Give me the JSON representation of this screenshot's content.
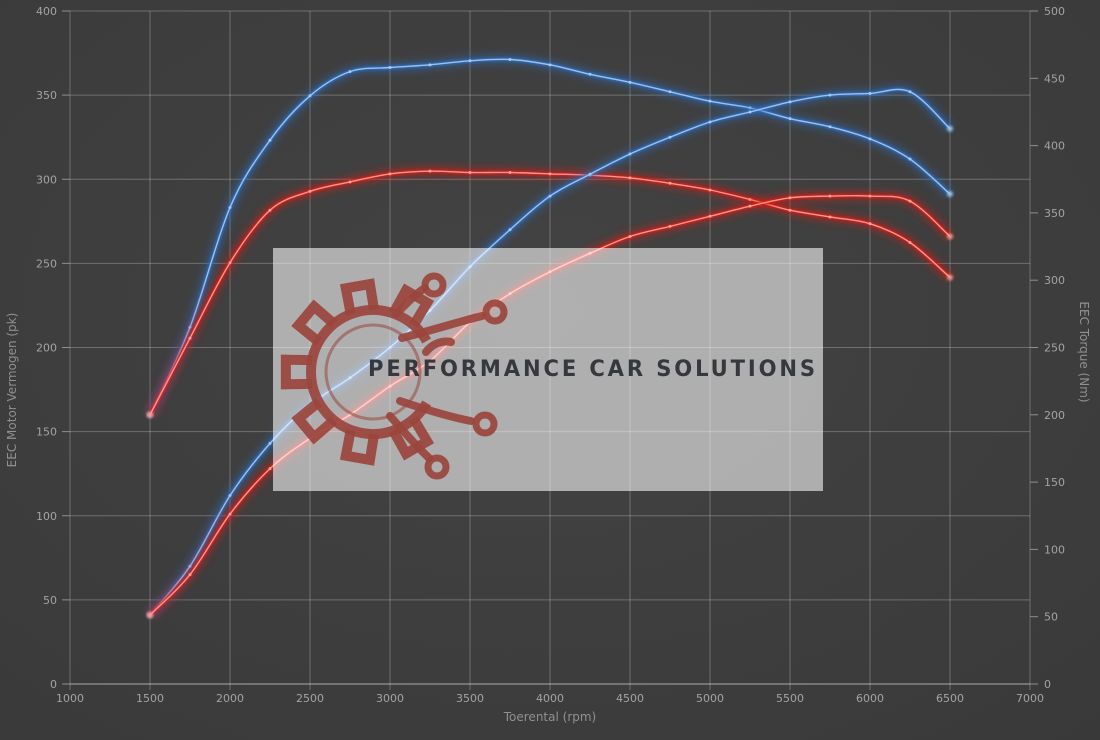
{
  "watermark": {
    "text": "PERFORMANCE CAR SOLUTIONS",
    "text_color": "#35383c",
    "box_color": "#ffffff",
    "box_opacity": 0.58,
    "logo_color": "#9a453d"
  },
  "chart_data": {
    "type": "line",
    "title": "",
    "xlabel": "Toerental (rpm)",
    "ylabel_left": "EEC Motor Vermogen (pk)",
    "ylabel_right": "EEC Torque (Nm)",
    "x_range": [
      1000,
      7000
    ],
    "x_tick_step": 500,
    "y_left_range": [
      0,
      400
    ],
    "y_right_range": [
      0,
      500
    ],
    "y_tick_step": 50,
    "grid": true,
    "legend": "none",
    "background": "#3b3b3b",
    "grid_color": "#757575",
    "rpm": [
      1500,
      1750,
      2000,
      2250,
      2500,
      2750,
      3000,
      3250,
      3500,
      3750,
      4000,
      4250,
      4500,
      4750,
      5000,
      5250,
      5500,
      5750,
      6000,
      6250,
      6500
    ],
    "series": [
      {
        "name": "torque-tuned-blue",
        "axis": "right",
        "color": "#2f6fc4",
        "core_color": "#a6ccf5",
        "values": [
          200,
          265,
          354,
          404,
          437,
          455,
          458,
          460,
          463,
          464,
          460,
          453,
          447,
          440,
          433,
          428,
          420,
          414,
          405,
          390,
          364
        ]
      },
      {
        "name": "torque-stock-red",
        "axis": "right",
        "color": "#e01f15",
        "core_color": "#ffa399",
        "values": [
          200,
          257,
          313,
          352,
          366,
          373,
          379,
          381,
          380,
          380,
          379,
          378,
          376,
          372,
          367,
          360,
          352,
          347,
          342,
          328,
          302
        ]
      },
      {
        "name": "power-tuned-blue",
        "axis": "left",
        "color": "#2f6fc4",
        "core_color": "#a6ccf5",
        "values": [
          41,
          70,
          112,
          143,
          166,
          182,
          200,
          222,
          248,
          270,
          290,
          303,
          315,
          325,
          334,
          340,
          346,
          350,
          351,
          352,
          330
        ]
      },
      {
        "name": "power-stock-red",
        "axis": "left",
        "color": "#e01f15",
        "core_color": "#ffa399",
        "values": [
          41,
          65,
          101,
          128,
          146,
          160,
          177,
          192,
          215,
          232,
          245,
          256,
          266,
          272,
          278,
          284,
          289,
          290,
          290,
          287,
          266
        ]
      }
    ]
  }
}
